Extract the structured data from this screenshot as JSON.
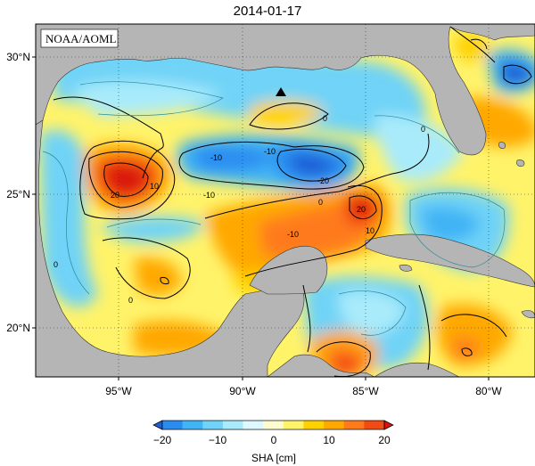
{
  "title": "2014-01-17",
  "credit": "NOAA/AOML",
  "lat_labels": [
    "30°N",
    "25°N",
    "20°N"
  ],
  "lon_labels": [
    "95°W",
    "90°W",
    "85°W",
    "80°W"
  ],
  "colorbar": {
    "label": "SHA [cm]",
    "ticks": [
      "−20",
      "−10",
      "0",
      "10",
      "20"
    ],
    "colors": [
      "#1f5fd6",
      "#2b8cf0",
      "#41b4f5",
      "#70d3f7",
      "#a9ebfb",
      "#ddf8fe",
      "#fffbd0",
      "#fff36a",
      "#ffd100",
      "#ffa800",
      "#ff7a1a",
      "#f24a14",
      "#d9140e"
    ]
  },
  "contour_labels": [
    "0",
    "0",
    "-10",
    "-10",
    "20",
    "-10",
    "-20",
    "10",
    "-10",
    "10",
    "20",
    "0",
    "0",
    "0"
  ],
  "map_colors": {
    "land": "#b5b5b5",
    "frame": "#000000"
  }
}
